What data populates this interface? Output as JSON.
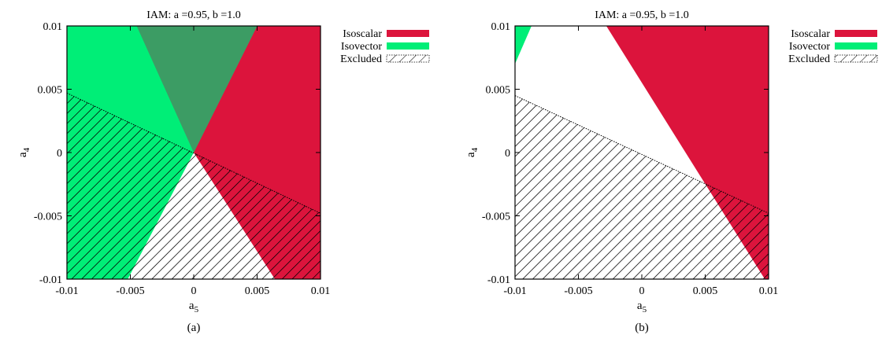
{
  "colors": {
    "isoscalar": "#dc143c",
    "isovector": "#00ee77",
    "overlap": "#3c9c64",
    "hatch": "#000000"
  },
  "chart_data": [
    {
      "type": "area",
      "panel_label": "(a)",
      "title": "IAM: a =0.95, b =1.0",
      "xlabel": "a",
      "xlabel_sub": "5",
      "ylabel": "a",
      "ylabel_sub": "4",
      "xlim": [
        -0.01,
        0.01
      ],
      "ylim": [
        -0.01,
        0.01
      ],
      "xticks": [
        -0.01,
        -0.005,
        0,
        0.005,
        0.01
      ],
      "xtick_labels": [
        "-0.01",
        "-0.005",
        "0",
        "0.005",
        "0.01"
      ],
      "yticks": [
        -0.01,
        -0.005,
        0,
        0.005,
        0.01
      ],
      "ytick_labels": [
        "-0.01",
        "-0.005",
        "0",
        "0.005",
        "0.01"
      ],
      "grid": false,
      "legend_position": "top-right, outside",
      "legend": [
        {
          "label": "Isoscalar",
          "style": "isoscalar"
        },
        {
          "label": "Isovector",
          "style": "isovector"
        },
        {
          "label": "Excluded",
          "style": "hatch"
        }
      ],
      "regions": [
        {
          "name": "Isoscalar",
          "style": "isoscalar",
          "points": [
            [
              -0.0045,
              0.01
            ],
            [
              0.01,
              0.01
            ],
            [
              0.01,
              -0.01
            ],
            [
              0.0064,
              -0.01
            ],
            [
              0,
              0
            ]
          ]
        },
        {
          "name": "Isovector",
          "style": "isovector",
          "points": [
            [
              -0.01,
              0.01
            ],
            [
              0.005,
              0.01
            ],
            [
              0,
              0
            ],
            [
              -0.0052,
              -0.01
            ],
            [
              -0.01,
              -0.01
            ]
          ]
        },
        {
          "name": "Excluded",
          "style": "hatch",
          "points": [
            [
              -0.01,
              0.0047
            ],
            [
              0,
              0
            ],
            [
              0.01,
              -0.0048
            ],
            [
              0.01,
              -0.01
            ],
            [
              -0.01,
              -0.01
            ]
          ]
        }
      ]
    },
    {
      "type": "area",
      "panel_label": "(b)",
      "title": "IAM: a =0.95, b =1.0",
      "xlabel": "a",
      "xlabel_sub": "5",
      "ylabel": "a",
      "ylabel_sub": "4",
      "xlim": [
        -0.01,
        0.01
      ],
      "ylim": [
        -0.01,
        0.01
      ],
      "xticks": [
        -0.01,
        -0.005,
        0,
        0.005,
        0.01
      ],
      "xtick_labels": [
        "-0.01",
        "-0.005",
        "0",
        "0.005",
        "0.01"
      ],
      "yticks": [
        -0.01,
        -0.005,
        0,
        0.005,
        0.01
      ],
      "ytick_labels": [
        "-0.01",
        "-0.005",
        "0",
        "0.005",
        "0.01"
      ],
      "grid": false,
      "legend_position": "top-right, outside",
      "legend": [
        {
          "label": "Isoscalar",
          "style": "isoscalar"
        },
        {
          "label": "Isovector",
          "style": "isovector"
        },
        {
          "label": "Excluded",
          "style": "hatch"
        }
      ],
      "regions": [
        {
          "name": "Isoscalar",
          "style": "isoscalar",
          "points": [
            [
              -0.0028,
              0.01
            ],
            [
              0.01,
              0.01
            ],
            [
              0.01,
              -0.01
            ],
            [
              0.0097,
              -0.01
            ]
          ]
        },
        {
          "name": "Isovector",
          "style": "isovector",
          "points": [
            [
              -0.01,
              0.01
            ],
            [
              -0.0087,
              0.01
            ],
            [
              -0.01,
              0.007
            ]
          ]
        },
        {
          "name": "Excluded",
          "style": "hatch",
          "points": [
            [
              -0.01,
              0.0045
            ],
            [
              0.01,
              -0.0048
            ],
            [
              0.01,
              -0.01
            ],
            [
              -0.01,
              -0.01
            ]
          ]
        }
      ]
    }
  ]
}
